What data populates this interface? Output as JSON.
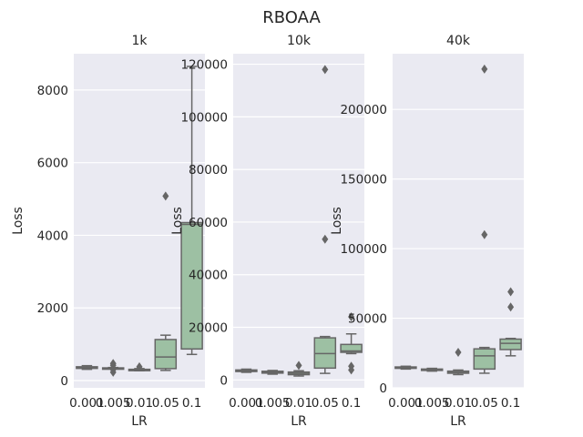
{
  "figure": {
    "title": "RBOAA"
  },
  "colors": {
    "axes_bg": "#EAEAF2",
    "grid": "#FFFFFF",
    "box_fill": "#9DC0A3",
    "box_line": "#666666"
  },
  "chart_data": [
    {
      "type": "box",
      "title": "1k",
      "xlabel": "LR",
      "ylabel": "Loss",
      "categories": [
        "0.001",
        "0.005",
        "0.01",
        "0.05",
        "0.1"
      ],
      "ylim": [
        -200,
        9000
      ],
      "yticks": [
        0,
        2000,
        4000,
        6000,
        8000
      ],
      "yticklabels": [
        "0",
        "2000",
        "4000",
        "6000",
        "8000"
      ],
      "boxes": [
        {
          "min": 310,
          "q1": 335,
          "median": 355,
          "q3": 380,
          "max": 410,
          "outliers": []
        },
        {
          "min": 320,
          "q1": 330,
          "median": 340,
          "q3": 350,
          "max": 360,
          "outliers": [
            230,
            300,
            420,
            470
          ]
        },
        {
          "min": 270,
          "q1": 285,
          "median": 295,
          "q3": 310,
          "max": 330,
          "outliers": [
            380
          ]
        },
        {
          "min": 280,
          "q1": 330,
          "median": 650,
          "q3": 1130,
          "max": 1250,
          "outliers": [
            5080
          ]
        },
        {
          "min": 720,
          "q1": 870,
          "median": 4300,
          "q3": 4350,
          "max": 8650,
          "outliers": []
        }
      ]
    },
    {
      "type": "box",
      "title": "10k",
      "xlabel": "LR",
      "ylabel": "Loss",
      "categories": [
        "0.001",
        "0.005",
        "0.01",
        "0.05",
        "0.1"
      ],
      "ylim": [
        -3000,
        124000
      ],
      "yticks": [
        0,
        20000,
        40000,
        60000,
        80000,
        100000,
        120000
      ],
      "yticklabels": [
        "0",
        "20000",
        "40000",
        "60000",
        "80000",
        "100000",
        "120000"
      ],
      "boxes": [
        {
          "min": 2900,
          "q1": 3200,
          "median": 3500,
          "q3": 3800,
          "max": 4100,
          "outliers": []
        },
        {
          "min": 2200,
          "q1": 2600,
          "median": 2900,
          "q3": 3300,
          "max": 3600,
          "outliers": []
        },
        {
          "min": 1500,
          "q1": 2000,
          "median": 2500,
          "q3": 3000,
          "max": 3500,
          "outliers": [
            5500
          ]
        },
        {
          "min": 2500,
          "q1": 4500,
          "median": 10000,
          "q3": 16000,
          "max": 16500,
          "outliers": [
            53500,
            118000
          ]
        },
        {
          "min": 10000,
          "q1": 10500,
          "median": 11000,
          "q3": 13500,
          "max": 17500,
          "outliers": [
            3800,
            5200,
            24000
          ]
        }
      ]
    },
    {
      "type": "box",
      "title": "40k",
      "xlabel": "LR",
      "ylabel": "Loss",
      "categories": [
        "0.001",
        "0.005",
        "0.01",
        "0.05",
        "0.1"
      ],
      "ylim": [
        0,
        240000
      ],
      "yticks": [
        0,
        50000,
        100000,
        150000,
        200000
      ],
      "yticklabels": [
        "0",
        "50000",
        "100000",
        "150000",
        "200000"
      ],
      "boxes": [
        {
          "min": 13500,
          "q1": 14000,
          "median": 14500,
          "q3": 15000,
          "max": 15500,
          "outliers": []
        },
        {
          "min": 12000,
          "q1": 12500,
          "median": 13000,
          "q3": 13500,
          "max": 14000,
          "outliers": []
        },
        {
          "min": 9500,
          "q1": 10500,
          "median": 11000,
          "q3": 12000,
          "max": 12800,
          "outliers": [
            25500
          ]
        },
        {
          "min": 10500,
          "q1": 13500,
          "median": 23000,
          "q3": 28000,
          "max": 29000,
          "outliers": [
            110000,
            229000
          ]
        },
        {
          "min": 23000,
          "q1": 27500,
          "median": 32000,
          "q3": 35000,
          "max": 35500,
          "outliers": [
            58000,
            69000
          ]
        }
      ]
    }
  ]
}
